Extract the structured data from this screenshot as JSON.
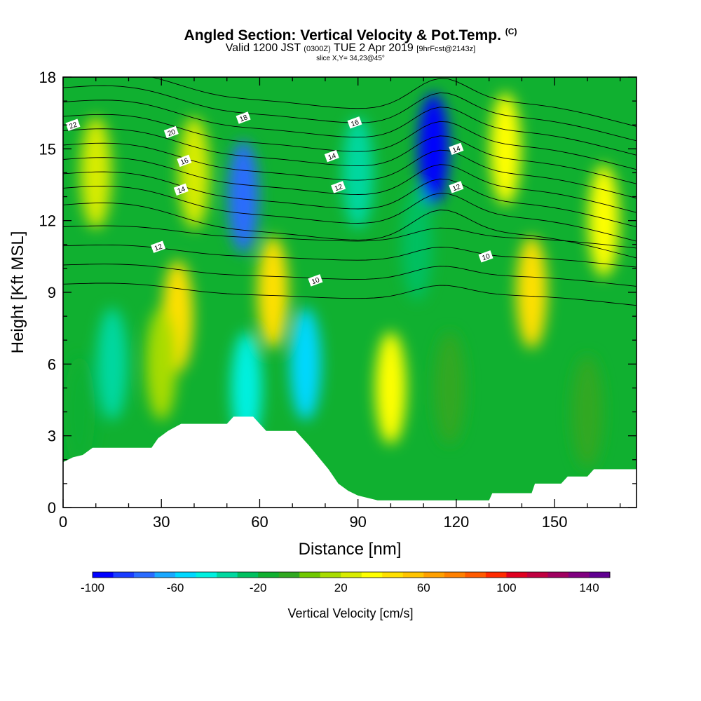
{
  "title": {
    "main": "Angled Section: Vertical Velocity & Pot.Temp.",
    "copyright": "(C)",
    "valid_prefix": "Valid 1200 JST",
    "utc": "(0300Z)",
    "date": "TUE 2 Apr 2019",
    "fcst": "[9hrFcst@2143z]",
    "slice": "slice X,Y= 34,23@45°"
  },
  "chart_data": {
    "type": "heatmap",
    "xlabel": "Distance [nm]",
    "ylabel": "Height [Kft MSL]",
    "xlim": [
      0,
      175
    ],
    "ylim": [
      0,
      18
    ],
    "x_ticks": [
      0,
      30,
      60,
      90,
      120,
      150
    ],
    "y_ticks": [
      0,
      3,
      6,
      9,
      12,
      15,
      18
    ],
    "colorbar": {
      "label": "Vertical Velocity [cm/s]",
      "range": [
        -100,
        150
      ],
      "step": 10,
      "tick_labels": [
        -100,
        -60,
        -20,
        20,
        60,
        100,
        140
      ],
      "colors": [
        "#0000ff",
        "#1a3cff",
        "#2a6cff",
        "#1aa8ff",
        "#00d8ff",
        "#00f0e0",
        "#00d8a0",
        "#00c060",
        "#10b030",
        "#30a820",
        "#70c800",
        "#a8dc00",
        "#d8ec00",
        "#ffff00",
        "#ffe000",
        "#ffc400",
        "#ffa000",
        "#ff8000",
        "#ff5a00",
        "#ff2a00",
        "#e00020",
        "#c00040",
        "#a00060",
        "#800080",
        "#600090"
      ]
    },
    "velocity_features": [
      {
        "x": 35,
        "y": 8,
        "value": 40
      },
      {
        "x": 40,
        "y": 14,
        "value": 20
      },
      {
        "x": 55,
        "y": 13,
        "value": -80
      },
      {
        "x": 56,
        "y": 5,
        "value": -50
      },
      {
        "x": 64,
        "y": 9,
        "value": 40
      },
      {
        "x": 74,
        "y": 6,
        "value": -60
      },
      {
        "x": 100,
        "y": 5,
        "value": 30
      },
      {
        "x": 113,
        "y": 15,
        "value": -100
      },
      {
        "x": 135,
        "y": 15,
        "value": 30
      },
      {
        "x": 143,
        "y": 9,
        "value": 40
      },
      {
        "x": 165,
        "y": 12,
        "value": 30
      },
      {
        "x": 15,
        "y": 6,
        "value": -40
      },
      {
        "x": 5,
        "y": 4,
        "value": -15
      },
      {
        "x": 30,
        "y": 6,
        "value": 10
      },
      {
        "x": 118,
        "y": 5,
        "value": -10
      },
      {
        "x": 160,
        "y": 4,
        "value": -10
      },
      {
        "x": 10,
        "y": 14,
        "value": 20
      },
      {
        "x": 90,
        "y": 14,
        "value": -40
      },
      {
        "x": 108,
        "y": 11,
        "value": -30
      }
    ],
    "contour_labels": [
      {
        "x": 3,
        "y": 16.0,
        "text": "22"
      },
      {
        "x": 33,
        "y": 15.7,
        "text": "20"
      },
      {
        "x": 55,
        "y": 16.3,
        "text": "18"
      },
      {
        "x": 37,
        "y": 14.5,
        "text": "16"
      },
      {
        "x": 89,
        "y": 16.1,
        "text": "16"
      },
      {
        "x": 36,
        "y": 13.3,
        "text": "14"
      },
      {
        "x": 82,
        "y": 14.7,
        "text": "14"
      },
      {
        "x": 120,
        "y": 15.0,
        "text": "14"
      },
      {
        "x": 29,
        "y": 10.9,
        "text": "12"
      },
      {
        "x": 84,
        "y": 13.4,
        "text": "12"
      },
      {
        "x": 120,
        "y": 13.4,
        "text": "12"
      },
      {
        "x": 77,
        "y": 9.5,
        "text": "10"
      },
      {
        "x": 129,
        "y": 10.5,
        "text": "10"
      }
    ],
    "terrain": [
      [
        0,
        1.9
      ],
      [
        3,
        2.1
      ],
      [
        6,
        2.2
      ],
      [
        9,
        2.5
      ],
      [
        27,
        2.5
      ],
      [
        29,
        2.9
      ],
      [
        32,
        3.2
      ],
      [
        36,
        3.5
      ],
      [
        50,
        3.5
      ],
      [
        52,
        3.8
      ],
      [
        58,
        3.8
      ],
      [
        60,
        3.5
      ],
      [
        62,
        3.2
      ],
      [
        71,
        3.2
      ],
      [
        75,
        2.6
      ],
      [
        78,
        2.1
      ],
      [
        81,
        1.6
      ],
      [
        84,
        1.0
      ],
      [
        87,
        0.7
      ],
      [
        90,
        0.5
      ],
      [
        96,
        0.3
      ],
      [
        130,
        0.3
      ],
      [
        131,
        0.6
      ],
      [
        143,
        0.6
      ],
      [
        144,
        1.0
      ],
      [
        152,
        1.0
      ],
      [
        154,
        1.3
      ],
      [
        160,
        1.3
      ],
      [
        162,
        1.6
      ],
      [
        175,
        1.6
      ]
    ]
  }
}
